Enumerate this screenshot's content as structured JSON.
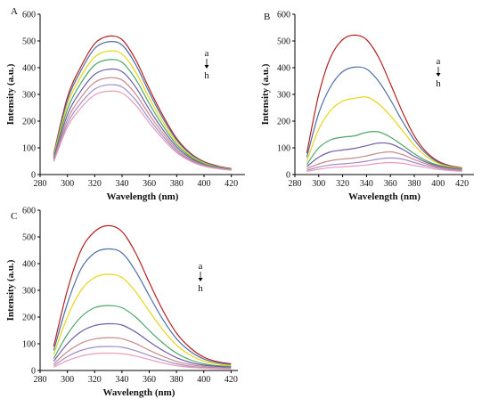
{
  "chart_data": [
    {
      "type": "line",
      "panel_label": "A",
      "xlabel": "Wavelength (nm)",
      "ylabel": "Intensity (a.u.)",
      "xlim": [
        280,
        430
      ],
      "ylim": [
        0,
        600
      ],
      "xticks": [
        280,
        300,
        320,
        340,
        360,
        380,
        400,
        420
      ],
      "yticks": [
        0,
        100,
        200,
        300,
        400,
        500,
        600
      ],
      "annotation": {
        "top": "a",
        "bottom": "h"
      },
      "x": [
        290,
        300,
        310,
        320,
        330,
        340,
        350,
        360,
        370,
        380,
        390,
        400,
        410,
        420
      ],
      "series": [
        {
          "color": "#b22222",
          "values": [
            78,
            290,
            405,
            490,
            518,
            505,
            430,
            320,
            220,
            135,
            80,
            48,
            32,
            22
          ]
        },
        {
          "color": "#4f6fa8",
          "values": [
            74,
            278,
            390,
            472,
            497,
            485,
            412,
            306,
            210,
            129,
            77,
            46,
            30,
            21
          ]
        },
        {
          "color": "#e8d51a",
          "values": [
            70,
            262,
            368,
            440,
            462,
            451,
            383,
            285,
            196,
            120,
            72,
            43,
            28,
            20
          ]
        },
        {
          "color": "#4da66a",
          "values": [
            65,
            244,
            343,
            410,
            430,
            420,
            357,
            265,
            182,
            112,
            67,
            40,
            27,
            19
          ]
        },
        {
          "color": "#6e5ea8",
          "values": [
            60,
            224,
            314,
            375,
            394,
            385,
            327,
            243,
            167,
            103,
            62,
            37,
            25,
            18
          ]
        },
        {
          "color": "#c98a8a",
          "values": [
            55,
            206,
            289,
            345,
            362,
            354,
            301,
            224,
            154,
            95,
            57,
            35,
            24,
            17
          ]
        },
        {
          "color": "#a08cc8",
          "values": [
            51,
            191,
            268,
            320,
            336,
            328,
            279,
            207,
            143,
            88,
            53,
            33,
            23,
            17
          ]
        },
        {
          "color": "#e89ab8",
          "values": [
            48,
            178,
            250,
            298,
            312,
            305,
            260,
            193,
            133,
            82,
            50,
            31,
            22,
            16
          ]
        }
      ]
    },
    {
      "type": "line",
      "panel_label": "B",
      "xlabel": "Wavelength (nm)",
      "ylabel": "Intensity (a.u.)",
      "xlim": [
        280,
        430
      ],
      "ylim": [
        0,
        600
      ],
      "xticks": [
        280,
        300,
        320,
        340,
        360,
        380,
        400,
        420
      ],
      "yticks": [
        0,
        100,
        200,
        300,
        400,
        500,
        600
      ],
      "annotation": {
        "top": "a",
        "bottom": "h"
      },
      "x": [
        290,
        300,
        310,
        320,
        330,
        340,
        350,
        360,
        370,
        380,
        390,
        400,
        410,
        420
      ],
      "series": [
        {
          "color": "#b22222",
          "values": [
            80,
            300,
            440,
            505,
            522,
            505,
            440,
            340,
            235,
            145,
            85,
            50,
            33,
            25
          ]
        },
        {
          "color": "#4f6fa8",
          "values": [
            65,
            230,
            330,
            385,
            402,
            395,
            350,
            280,
            200,
            130,
            78,
            46,
            31,
            23
          ]
        },
        {
          "color": "#e8d51a",
          "values": [
            50,
            170,
            240,
            275,
            285,
            290,
            265,
            220,
            165,
            110,
            68,
            42,
            29,
            22
          ]
        },
        {
          "color": "#4da66a",
          "values": [
            38,
            100,
            130,
            140,
            145,
            158,
            160,
            140,
            110,
            78,
            52,
            35,
            26,
            20
          ]
        },
        {
          "color": "#6e5ea8",
          "values": [
            30,
            65,
            85,
            92,
            98,
            108,
            118,
            115,
            95,
            68,
            46,
            32,
            24,
            18
          ]
        },
        {
          "color": "#c98a8a",
          "values": [
            22,
            40,
            52,
            58,
            62,
            70,
            80,
            85,
            75,
            56,
            40,
            28,
            21,
            16
          ]
        },
        {
          "color": "#a08cc8",
          "values": [
            16,
            28,
            36,
            40,
            44,
            50,
            58,
            62,
            58,
            45,
            33,
            24,
            18,
            14
          ]
        },
        {
          "color": "#e89ab8",
          "values": [
            12,
            20,
            26,
            29,
            32,
            36,
            42,
            45,
            42,
            34,
            26,
            19,
            15,
            12
          ]
        }
      ]
    },
    {
      "type": "line",
      "panel_label": "C",
      "xlabel": "Wavelength (nm)",
      "ylabel": "Intensity (a.u.)",
      "xlim": [
        280,
        425
      ],
      "ylim": [
        0,
        600
      ],
      "xticks": [
        280,
        300,
        320,
        340,
        360,
        380,
        400,
        420
      ],
      "yticks": [
        0,
        100,
        200,
        300,
        400,
        500,
        600
      ],
      "annotation": {
        "top": "a",
        "bottom": "h"
      },
      "x": [
        290,
        300,
        310,
        320,
        330,
        340,
        350,
        360,
        370,
        380,
        390,
        400,
        410,
        420
      ],
      "series": [
        {
          "color": "#b22222",
          "values": [
            90,
            300,
            450,
            520,
            542,
            520,
            440,
            330,
            225,
            140,
            85,
            50,
            33,
            25
          ]
        },
        {
          "color": "#4f6fa8",
          "values": [
            75,
            250,
            380,
            440,
            455,
            440,
            372,
            280,
            191,
            119,
            72,
            43,
            29,
            22
          ]
        },
        {
          "color": "#e8d51a",
          "values": [
            60,
            200,
            300,
            348,
            360,
            348,
            295,
            222,
            152,
            95,
            58,
            35,
            24,
            19
          ]
        },
        {
          "color": "#4da66a",
          "values": [
            45,
            135,
            200,
            235,
            243,
            235,
            200,
            150,
            103,
            65,
            40,
            25,
            18,
            15
          ]
        },
        {
          "color": "#6e5ea8",
          "values": [
            35,
            100,
            145,
            168,
            175,
            170,
            144,
            108,
            75,
            48,
            30,
            20,
            15,
            12
          ]
        },
        {
          "color": "#c98a8a",
          "values": [
            25,
            70,
            102,
            118,
            123,
            119,
            101,
            76,
            53,
            34,
            22,
            15,
            11,
            9
          ]
        },
        {
          "color": "#a08cc8",
          "values": [
            18,
            52,
            75,
            87,
            90,
            87,
            74,
            56,
            39,
            25,
            16,
            11,
            9,
            7
          ]
        },
        {
          "color": "#e89ab8",
          "values": [
            12,
            37,
            54,
            63,
            65,
            63,
            54,
            41,
            28,
            18,
            12,
            9,
            7,
            6
          ]
        }
      ]
    }
  ]
}
